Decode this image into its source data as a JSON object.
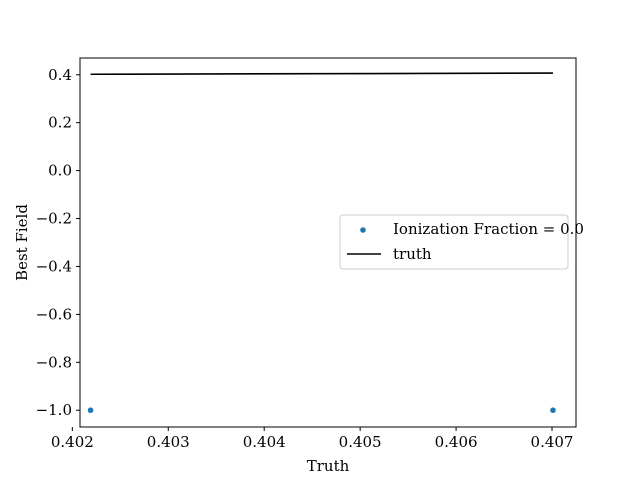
{
  "chart_data": {
    "type": "scatter",
    "xlabel": "Truth",
    "ylabel": "Best Field",
    "xlim": [
      0.40208,
      0.40725
    ],
    "ylim": [
      -1.07,
      0.47
    ],
    "xticks": [
      0.402,
      0.403,
      0.404,
      0.405,
      0.406,
      0.407
    ],
    "xtick_labels": [
      "0.402",
      "0.403",
      "0.404",
      "0.405",
      "0.406",
      "0.407"
    ],
    "yticks": [
      0.4,
      0.2,
      0.0,
      -0.2,
      -0.4,
      -0.6,
      -0.8,
      -1.0
    ],
    "ytick_labels": [
      "0.4",
      "0.2",
      "0.0",
      "−0.2",
      "−0.4",
      "−0.6",
      "−0.8",
      "−1.0"
    ],
    "grid": false,
    "legend_position": "center-right",
    "series": [
      {
        "name": "Ionization Fraction = 0.0",
        "kind": "scatter",
        "color": "#1f77b4",
        "x": [
          0.40219,
          0.40701
        ],
        "y": [
          -1.0,
          -1.0
        ]
      },
      {
        "name": "truth",
        "kind": "line",
        "color": "#000000",
        "x": [
          0.40219,
          0.40701
        ],
        "y": [
          0.40219,
          0.40701
        ]
      }
    ]
  }
}
